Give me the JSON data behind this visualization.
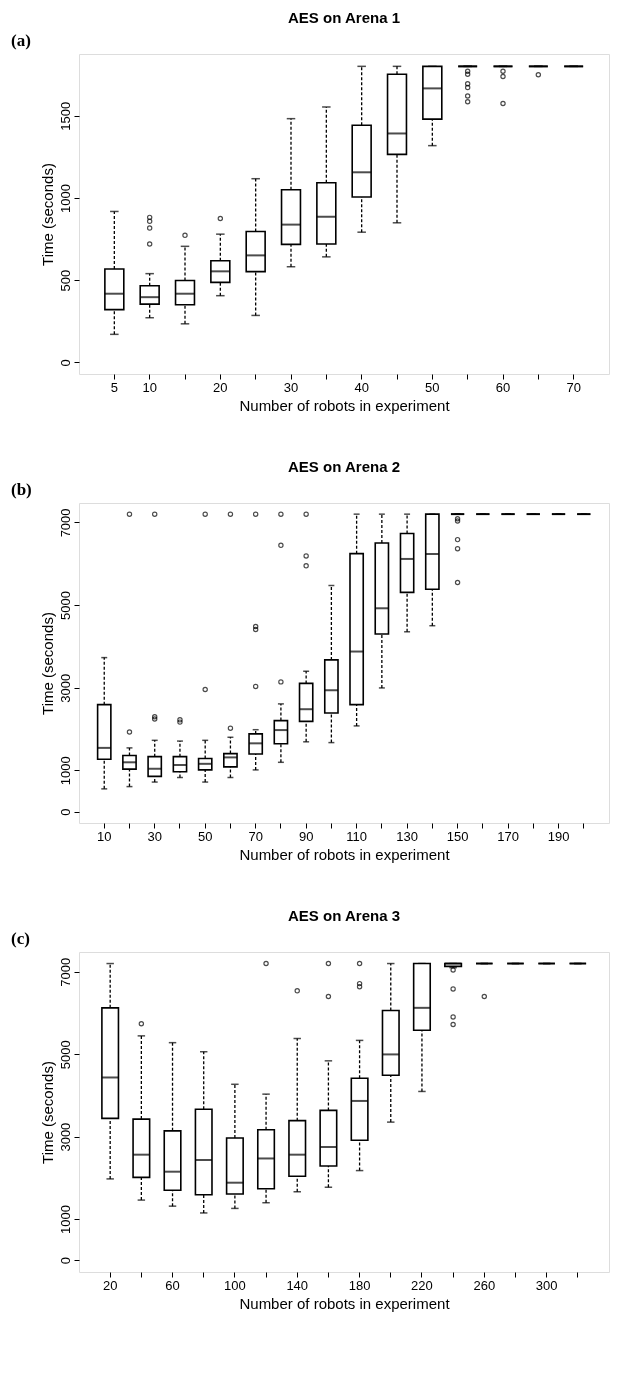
{
  "chart_data": [
    {
      "type": "box",
      "title": "AES on Arena 1",
      "xlabel": "Number of robots in experiment",
      "ylabel": "Time (seconds)",
      "annotations": [
        "(a)"
      ],
      "grid": false,
      "categories": [
        "5",
        "10",
        null,
        "20",
        null,
        "30",
        null,
        "40",
        null,
        "50",
        null,
        "60",
        null,
        "70"
      ],
      "ylim": [
        -70,
        1875
      ],
      "yticks": [
        0,
        500,
        1000,
        1500
      ],
      "boxes": [
        {
          "low": 171,
          "q1": 321,
          "median": 418,
          "q3": 568,
          "high": 918
        },
        {
          "low": 272,
          "q1": 355,
          "median": 397,
          "q3": 466,
          "high": 540,
          "outliers": [
            882,
            858,
            817,
            720
          ]
        },
        {
          "low": 235,
          "q1": 351,
          "median": 418,
          "q3": 498,
          "high": 706,
          "outliers": [
            773
          ]
        },
        {
          "low": 406,
          "q1": 487,
          "median": 554,
          "q3": 618,
          "high": 780,
          "outliers": [
            875
          ]
        },
        {
          "low": 286,
          "q1": 552,
          "median": 651,
          "q3": 796,
          "high": 1117
        },
        {
          "low": 582,
          "q1": 718,
          "median": 838,
          "q3": 1050,
          "high": 1482
        },
        {
          "low": 642,
          "q1": 720,
          "median": 886,
          "q3": 1092,
          "high": 1553
        },
        {
          "low": 792,
          "q1": 1006,
          "median": 1156,
          "q3": 1442,
          "high": 1800
        },
        {
          "low": 849,
          "q1": 1265,
          "median": 1392,
          "q3": 1752,
          "high": 1800
        },
        {
          "low": 1318,
          "q1": 1479,
          "median": 1666,
          "q3": 1800,
          "high": 1800
        },
        {
          "low": 1800,
          "q1": 1800,
          "median": 1800,
          "q3": 1800,
          "high": 1800,
          "outliers": [
            1770,
            1752,
            1694,
            1671,
            1620,
            1585
          ]
        },
        {
          "low": 1800,
          "q1": 1800,
          "median": 1800,
          "q3": 1800,
          "high": 1800,
          "outliers": [
            1770,
            1738,
            1574
          ]
        },
        {
          "low": 1800,
          "q1": 1800,
          "median": 1800,
          "q3": 1800,
          "high": 1800,
          "outliers": [
            1749
          ]
        },
        {
          "low": 1800,
          "q1": 1800,
          "median": 1800,
          "q3": 1800,
          "high": 1800
        }
      ]
    },
    {
      "type": "box",
      "title": "AES on Arena 2",
      "xlabel": "Number of robots in experiment",
      "ylabel": "Time (seconds)",
      "annotations": [
        "(b)"
      ],
      "grid": false,
      "categories": [
        "10",
        null,
        "30",
        null,
        "50",
        null,
        "70",
        null,
        "90",
        null,
        "110",
        null,
        "130",
        null,
        "150",
        null,
        "170",
        null,
        "190",
        null
      ],
      "ylim": [
        -275,
        7470
      ],
      "yticks": [
        0,
        1000,
        3000,
        5000,
        7000
      ],
      "boxes": [
        {
          "low": 551,
          "q1": 1267,
          "median": 1543,
          "q3": 2590,
          "high": 3728
        },
        {
          "low": 606,
          "q1": 1028,
          "median": 1194,
          "q3": 1359,
          "high": 1543,
          "outliers": [
            7200,
            1928
          ]
        },
        {
          "low": 716,
          "q1": 854,
          "median": 1038,
          "q3": 1331,
          "high": 1726,
          "outliers": [
            7200,
            2296,
            2241
          ]
        },
        {
          "low": 826,
          "q1": 964,
          "median": 1129,
          "q3": 1331,
          "high": 1708,
          "outliers": [
            2222,
            2167
          ]
        },
        {
          "low": 716,
          "q1": 1010,
          "median": 1157,
          "q3": 1286,
          "high": 1726,
          "outliers": [
            7200,
            2957
          ]
        },
        {
          "low": 826,
          "q1": 1084,
          "median": 1313,
          "q3": 1405,
          "high": 1800,
          "outliers": [
            7200,
            2020
          ]
        },
        {
          "low": 1010,
          "q1": 1396,
          "median": 1653,
          "q3": 1882,
          "high": 1983,
          "outliers": [
            7200,
            4481,
            4408,
            3030
          ]
        },
        {
          "low": 1194,
          "q1": 1644,
          "median": 1974,
          "q3": 2204,
          "high": 2608,
          "outliers": [
            7200,
            6446,
            3140
          ]
        },
        {
          "low": 1690,
          "q1": 2185,
          "median": 2479,
          "q3": 3104,
          "high": 3398,
          "outliers": [
            7200,
            6189,
            5950
          ]
        },
        {
          "low": 1671,
          "q1": 2388,
          "median": 2938,
          "q3": 3673,
          "high": 5473
        },
        {
          "low": 2075,
          "q1": 2590,
          "median": 3875,
          "q3": 6244,
          "high": 7200
        },
        {
          "low": 2994,
          "q1": 4298,
          "median": 4922,
          "q3": 6501,
          "high": 7200
        },
        {
          "low": 4353,
          "q1": 5308,
          "median": 6116,
          "q3": 6731,
          "high": 7200
        },
        {
          "low": 4500,
          "q1": 5381,
          "median": 6235,
          "q3": 7200,
          "high": 7200
        },
        {
          "low": 7200,
          "q1": 7200,
          "median": 7200,
          "q3": 7200,
          "high": 7200,
          "outliers": [
            7089,
            7034,
            6584,
            6364,
            5546
          ]
        },
        {
          "low": 7200,
          "q1": 7200,
          "median": 7200,
          "q3": 7200,
          "high": 7200
        },
        {
          "low": 7200,
          "q1": 7200,
          "median": 7200,
          "q3": 7200,
          "high": 7200
        },
        {
          "low": 7200,
          "q1": 7200,
          "median": 7200,
          "q3": 7200,
          "high": 7200
        },
        {
          "low": 7200,
          "q1": 7200,
          "median": 7200,
          "q3": 7200,
          "high": 7200
        },
        {
          "low": 7200,
          "q1": 7200,
          "median": 7200,
          "q3": 7200,
          "high": 7200
        }
      ]
    },
    {
      "type": "box",
      "title": "AES on Arena 3",
      "xlabel": "Number of robots in experiment",
      "ylabel": "Time (seconds)",
      "annotations": [
        "(c)"
      ],
      "grid": false,
      "categories": [
        "20",
        null,
        "60",
        null,
        "100",
        null,
        "140",
        null,
        "180",
        null,
        "220",
        null,
        "260",
        null,
        "300",
        null
      ],
      "ylim": [
        -285,
        7480
      ],
      "yticks": [
        0,
        1000,
        3000,
        5000,
        7000
      ],
      "boxes": [
        {
          "low": 1974,
          "q1": 3444,
          "median": 4435,
          "q3": 6125,
          "high": 7200
        },
        {
          "low": 1460,
          "q1": 2011,
          "median": 2562,
          "q3": 3425,
          "high": 5445,
          "outliers": [
            5739
          ]
        },
        {
          "low": 1313,
          "q1": 1699,
          "median": 2149,
          "q3": 3140,
          "high": 5280
        },
        {
          "low": 1148,
          "q1": 1589,
          "median": 2433,
          "q3": 3664,
          "high": 5060
        },
        {
          "low": 1258,
          "q1": 1607,
          "median": 1882,
          "q3": 2966,
          "high": 4270
        },
        {
          "low": 1396,
          "q1": 1736,
          "median": 2470,
          "q3": 3168,
          "high": 4031,
          "outliers": [
            7200
          ]
        },
        {
          "low": 1662,
          "q1": 2039,
          "median": 2562,
          "q3": 3388,
          "high": 5381,
          "outliers": [
            6538
          ]
        },
        {
          "low": 1772,
          "q1": 2286,
          "median": 2746,
          "q3": 3636,
          "high": 4839,
          "outliers": [
            7200,
            6400
          ]
        },
        {
          "low": 2176,
          "q1": 2911,
          "median": 3866,
          "q3": 4417,
          "high": 5335,
          "outliers": [
            7200,
            6713,
            6639
          ]
        },
        {
          "low": 3352,
          "q1": 4490,
          "median": 4995,
          "q3": 6061,
          "high": 7200
        },
        {
          "low": 4096,
          "q1": 5583,
          "median": 6125,
          "q3": 7200,
          "high": 7200
        },
        {
          "low": 7100,
          "q1": 7130,
          "median": 7200,
          "q3": 7200,
          "high": 7200,
          "outliers": [
            7043,
            6584,
            5905,
            5721
          ]
        },
        {
          "low": 7200,
          "q1": 7200,
          "median": 7200,
          "q3": 7200,
          "high": 7200,
          "outliers": [
            6400
          ]
        },
        {
          "low": 7200,
          "q1": 7200,
          "median": 7200,
          "q3": 7200,
          "high": 7200
        },
        {
          "low": 7200,
          "q1": 7200,
          "median": 7200,
          "q3": 7200,
          "high": 7200
        },
        {
          "low": 7200,
          "q1": 7200,
          "median": 7200,
          "q3": 7200,
          "high": 7200
        }
      ]
    }
  ]
}
